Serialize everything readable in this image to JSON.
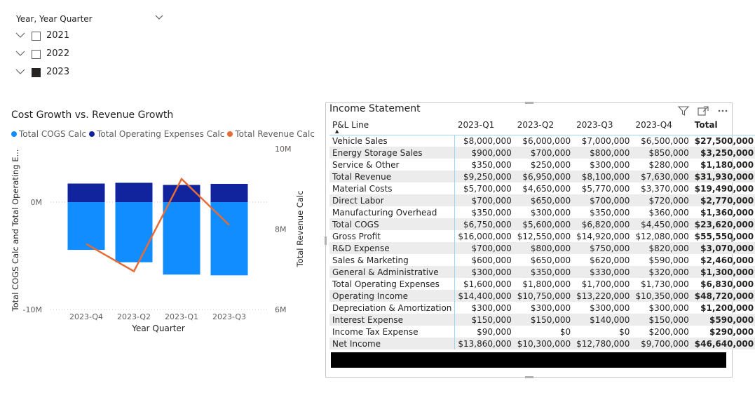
{
  "slicer": {
    "header": "Year, Year Quarter",
    "items": [
      {
        "label": "2021",
        "checked": false
      },
      {
        "label": "2022",
        "checked": false
      },
      {
        "label": "2023",
        "checked": true
      }
    ]
  },
  "chart": {
    "title": "Cost Growth vs. Revenue Growth",
    "legend": [
      {
        "label": "Total COGS Calc",
        "color": "#118dff"
      },
      {
        "label": "Total Operating Expenses Calc",
        "color": "#12239e"
      },
      {
        "label": "Total Revenue Calc",
        "color": "#e66c37"
      }
    ]
  },
  "chart_data": {
    "type": "bar",
    "title": "Cost Growth vs. Revenue Growth",
    "xlabel": "Year Quarter",
    "ylabel": "Total COGS Calc and Total Operating E...",
    "y2label": "Total Revenue Calc",
    "categories": [
      "2023-Q4",
      "2023-Q2",
      "2023-Q1",
      "2023-Q3"
    ],
    "left_axis": {
      "ylim": [
        -10,
        4.0
      ],
      "ticks": [
        {
          "value": 0,
          "label": "0M"
        },
        {
          "value": -10,
          "label": "-10M"
        }
      ]
    },
    "right_axis": {
      "ylim": [
        5.6,
        10.7
      ],
      "ticks": [
        {
          "value": 10,
          "label": "10M"
        },
        {
          "value": 8,
          "label": "8M"
        },
        {
          "value": 6,
          "label": "6M"
        }
      ]
    },
    "series": [
      {
        "name": "Total COGS Calc",
        "color": "#118dff",
        "axis": "left",
        "values": [
          -4.45,
          -5.6,
          -6.75,
          -6.82
        ]
      },
      {
        "name": "Total Operating Expenses Calc",
        "color": "#12239e",
        "axis": "left",
        "values": [
          1.73,
          1.8,
          1.6,
          1.7
        ]
      },
      {
        "name": "Total Revenue Calc",
        "color": "#e66c37",
        "axis": "right",
        "type": "line",
        "values": [
          7.63,
          6.95,
          9.25,
          8.1
        ]
      }
    ]
  },
  "table": {
    "title": "Income Statement",
    "columns": [
      "P&L Line",
      "2023-Q1",
      "2023-Q2",
      "2023-Q3",
      "2023-Q4",
      "Total"
    ],
    "rows": [
      [
        "Vehicle Sales",
        "$8,000,000",
        "$6,000,000",
        "$7,000,000",
        "$6,500,000",
        "$27,500,000"
      ],
      [
        "Energy Storage Sales",
        "$900,000",
        "$700,000",
        "$800,000",
        "$850,000",
        "$3,250,000"
      ],
      [
        "Service & Other",
        "$350,000",
        "$250,000",
        "$300,000",
        "$280,000",
        "$1,180,000"
      ],
      [
        "Total Revenue",
        "$9,250,000",
        "$6,950,000",
        "$8,100,000",
        "$7,630,000",
        "$31,930,000"
      ],
      [
        "Material Costs",
        "$5,700,000",
        "$4,650,000",
        "$5,770,000",
        "$3,370,000",
        "$19,490,000"
      ],
      [
        "Direct Labor",
        "$700,000",
        "$650,000",
        "$700,000",
        "$720,000",
        "$2,770,000"
      ],
      [
        "Manufacturing Overhead",
        "$350,000",
        "$300,000",
        "$350,000",
        "$360,000",
        "$1,360,000"
      ],
      [
        "Total COGS",
        "$6,750,000",
        "$5,600,000",
        "$6,820,000",
        "$4,450,000",
        "$23,620,000"
      ],
      [
        "Gross Profit",
        "$16,000,000",
        "$12,550,000",
        "$14,920,000",
        "$12,080,000",
        "$55,550,000"
      ],
      [
        "R&D Expense",
        "$700,000",
        "$800,000",
        "$750,000",
        "$820,000",
        "$3,070,000"
      ],
      [
        "Sales & Marketing",
        "$600,000",
        "$650,000",
        "$620,000",
        "$590,000",
        "$2,460,000"
      ],
      [
        "General & Administrative",
        "$300,000",
        "$350,000",
        "$330,000",
        "$320,000",
        "$1,300,000"
      ],
      [
        "Total Operating Expenses",
        "$1,600,000",
        "$1,800,000",
        "$1,700,000",
        "$1,730,000",
        "$6,830,000"
      ],
      [
        "Operating Income",
        "$14,400,000",
        "$10,750,000",
        "$13,220,000",
        "$10,350,000",
        "$48,720,000"
      ],
      [
        "Depreciation & Amortization",
        "$300,000",
        "$300,000",
        "$300,000",
        "$300,000",
        "$1,200,000"
      ],
      [
        "Interest Expense",
        "$150,000",
        "$150,000",
        "$140,000",
        "$150,000",
        "$590,000"
      ],
      [
        "Income Tax Expense",
        "$90,000",
        "$0",
        "$0",
        "$200,000",
        "$290,000"
      ],
      [
        "Net Income",
        "$13,860,000",
        "$10,300,000",
        "$12,780,000",
        "$9,700,000",
        "$46,640,000"
      ]
    ]
  }
}
